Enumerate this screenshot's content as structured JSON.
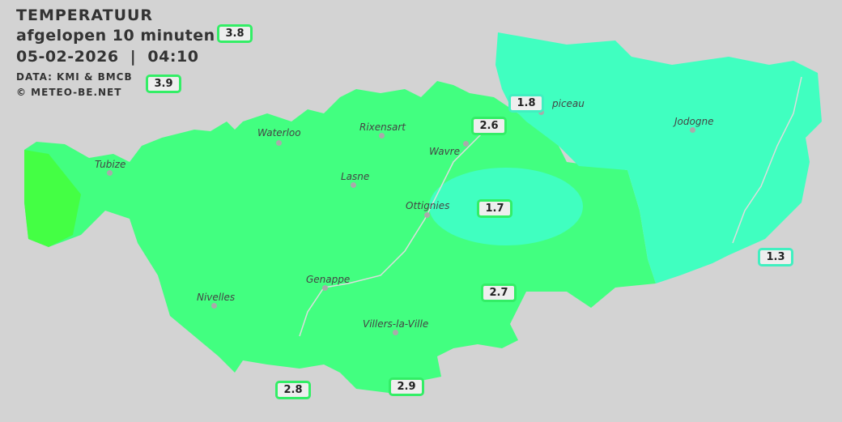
{
  "header": {
    "title": "TEMPERATUUR",
    "subtitle": "afgelopen 10 minuten",
    "datetime": "05-02-2026  |  04:10",
    "source": "DATA: KMI & BMCB",
    "copyright": "© METEO-BE.NET"
  },
  "colors": {
    "background": "#d3d3d3",
    "warm": "#42ff80",
    "mid": "#3ef2a0",
    "cool": "#40ffc0",
    "hot": "#44ff44"
  },
  "towns": [
    {
      "name": "Waterloo"
    },
    {
      "name": "Rixensart"
    },
    {
      "name": "Wavre"
    },
    {
      "name": "piceau"
    },
    {
      "name": "Jodogne"
    },
    {
      "name": "Tubize"
    },
    {
      "name": "Lasne"
    },
    {
      "name": "Ottignies"
    },
    {
      "name": "Genappe"
    },
    {
      "name": "Nivelles"
    },
    {
      "name": "Villers-la-Ville"
    }
  ],
  "stations": [
    {
      "value": "3.8"
    },
    {
      "value": "3.9"
    },
    {
      "value": "1.8"
    },
    {
      "value": "2.6"
    },
    {
      "value": "1.7"
    },
    {
      "value": "1.3"
    },
    {
      "value": "2.7"
    },
    {
      "value": "2.8"
    },
    {
      "value": "2.9"
    }
  ]
}
